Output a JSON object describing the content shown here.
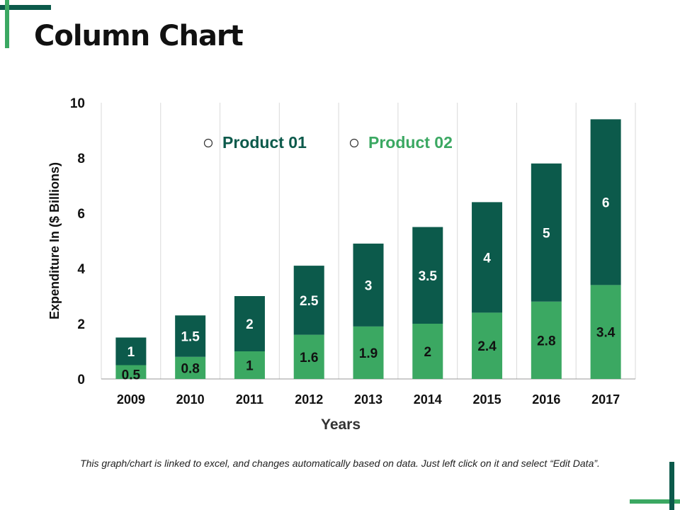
{
  "title": "Column Chart",
  "footnote": "This graph/chart is linked to excel, and changes automatically based on data. Just left click on it and select “Edit Data”.",
  "colors": {
    "product01": "#0c5a4b",
    "product02": "#3ba862",
    "grid": "#d9d9d9"
  },
  "chart_data": {
    "type": "bar",
    "stacked": true,
    "categories": [
      "2009",
      "2010",
      "2011",
      "2012",
      "2013",
      "2014",
      "2015",
      "2016",
      "2017"
    ],
    "series": [
      {
        "name": "Product 02",
        "values": [
          0.5,
          0.8,
          1,
          1.6,
          1.9,
          2,
          2.4,
          2.8,
          3.4
        ]
      },
      {
        "name": "Product 01",
        "values": [
          1,
          1.5,
          2,
          2.5,
          3,
          3.5,
          4,
          5,
          6
        ]
      }
    ],
    "legend_order": [
      "Product 01",
      "Product 02"
    ],
    "xlabel": "Years",
    "ylabel": "Expenditure In ($ Billions)",
    "ylim": [
      0,
      10
    ],
    "yticks": [
      0,
      2,
      4,
      6,
      8,
      10
    ],
    "grid": "vertical",
    "legend_position": "top"
  }
}
